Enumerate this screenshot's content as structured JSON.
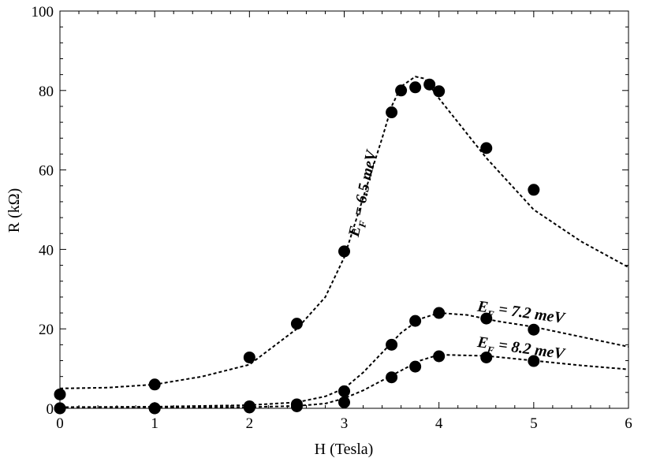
{
  "chart_data": {
    "type": "scatter",
    "title": "",
    "xlabel": "H (Tesla)",
    "ylabel": "R (kΩ)",
    "xlim": [
      0,
      6
    ],
    "ylim": [
      0,
      100
    ],
    "xticks": [
      0,
      1,
      2,
      3,
      4,
      5,
      6
    ],
    "yticks": [
      0,
      20,
      40,
      60,
      80,
      100
    ],
    "grid": false,
    "series": [
      {
        "annotation": "E_F = 6.5 meV",
        "label_parts": {
          "main": "E",
          "sub": "F",
          "rest": " = 6.5 meV"
        },
        "points": [
          [
            0,
            3.5
          ],
          [
            1,
            6
          ],
          [
            2,
            12.8
          ],
          [
            2.5,
            21.3
          ],
          [
            3,
            39.5
          ],
          [
            3.5,
            74.5
          ],
          [
            3.6,
            80
          ],
          [
            3.75,
            80.8
          ],
          [
            3.9,
            81.5
          ],
          [
            4,
            79.8
          ],
          [
            4.5,
            65.5
          ],
          [
            5,
            55
          ]
        ],
        "fit": [
          [
            0,
            5
          ],
          [
            0.5,
            5.2
          ],
          [
            1,
            6
          ],
          [
            1.5,
            8
          ],
          [
            2,
            11
          ],
          [
            2.5,
            20
          ],
          [
            2.8,
            28
          ],
          [
            3,
            38
          ],
          [
            3.2,
            53
          ],
          [
            3.4,
            68
          ],
          [
            3.5,
            76
          ],
          [
            3.6,
            81
          ],
          [
            3.75,
            83.5
          ],
          [
            3.85,
            83
          ],
          [
            4,
            78
          ],
          [
            4.2,
            72
          ],
          [
            4.5,
            63
          ],
          [
            5,
            50
          ],
          [
            5.5,
            42
          ],
          [
            6,
            35.5
          ]
        ]
      },
      {
        "annotation": "E_F = 7.2 meV",
        "label_parts": {
          "main": "E",
          "sub": "F",
          "rest": " = 7.2 meV"
        },
        "points": [
          [
            0,
            0
          ],
          [
            1,
            0
          ],
          [
            2,
            0.5
          ],
          [
            2.5,
            1
          ],
          [
            3,
            4.3
          ],
          [
            3.5,
            16
          ],
          [
            3.75,
            22
          ],
          [
            4,
            24
          ],
          [
            4.5,
            22.6
          ],
          [
            5,
            19.8
          ]
        ],
        "fit": [
          [
            0,
            0.3
          ],
          [
            1,
            0.4
          ],
          [
            2,
            0.8
          ],
          [
            2.5,
            1.5
          ],
          [
            2.8,
            3
          ],
          [
            3,
            5
          ],
          [
            3.2,
            9
          ],
          [
            3.4,
            14
          ],
          [
            3.6,
            19
          ],
          [
            3.8,
            22.5
          ],
          [
            4,
            24
          ],
          [
            4.3,
            23.5
          ],
          [
            4.6,
            22
          ],
          [
            5,
            20.5
          ],
          [
            5.5,
            18
          ],
          [
            6,
            15.5
          ]
        ]
      },
      {
        "annotation": "E_F = 8.2 meV",
        "label_parts": {
          "main": "E",
          "sub": "F",
          "rest": " = 8.2 meV"
        },
        "points": [
          [
            0,
            0
          ],
          [
            1,
            0
          ],
          [
            2,
            0.2
          ],
          [
            2.5,
            0.5
          ],
          [
            3,
            1.5
          ],
          [
            3.5,
            7.8
          ],
          [
            3.75,
            10.5
          ],
          [
            4,
            13.1
          ],
          [
            4.5,
            12.8
          ],
          [
            5,
            11.9
          ]
        ],
        "fit": [
          [
            0,
            0.1
          ],
          [
            1,
            0.2
          ],
          [
            2,
            0.3
          ],
          [
            2.5,
            0.6
          ],
          [
            2.8,
            1.2
          ],
          [
            3,
            2.5
          ],
          [
            3.2,
            4.5
          ],
          [
            3.4,
            7
          ],
          [
            3.6,
            9.5
          ],
          [
            3.8,
            12
          ],
          [
            4,
            13.5
          ],
          [
            4.5,
            13.2
          ],
          [
            5,
            12
          ],
          [
            5.5,
            10.8
          ],
          [
            6,
            9.8
          ]
        ]
      }
    ]
  }
}
